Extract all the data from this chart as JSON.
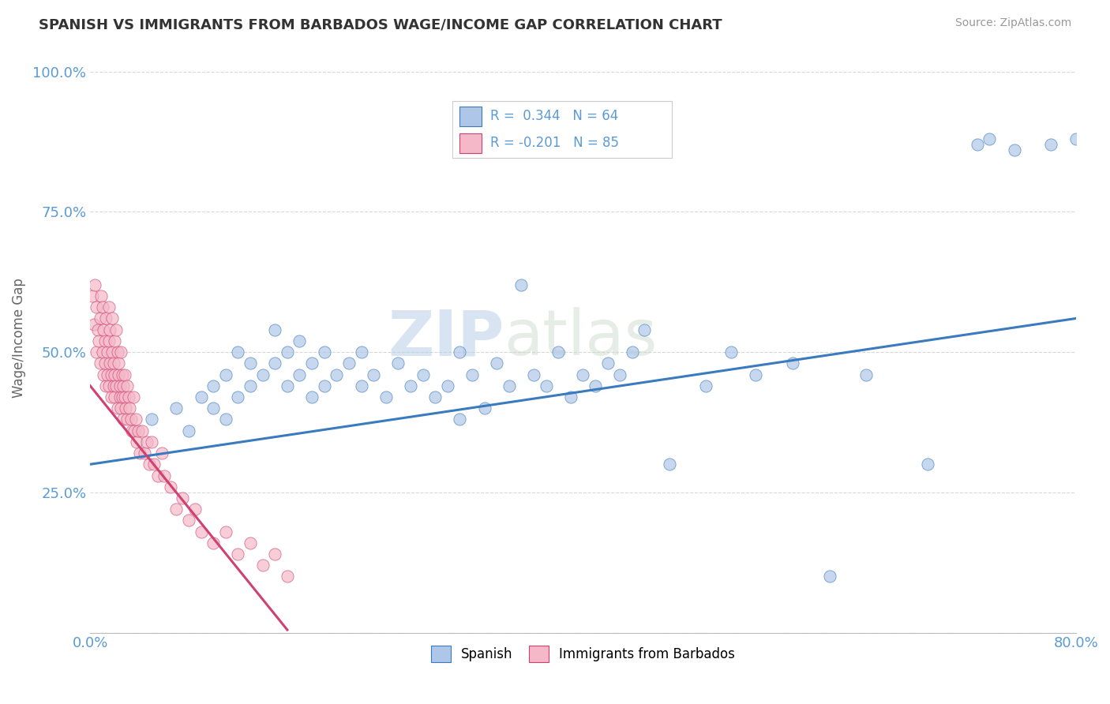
{
  "title": "SPANISH VS IMMIGRANTS FROM BARBADOS WAGE/INCOME GAP CORRELATION CHART",
  "source": "Source: ZipAtlas.com",
  "ylabel": "Wage/Income Gap",
  "legend_labels": [
    "Spanish",
    "Immigrants from Barbados"
  ],
  "blue_color": "#aec6e8",
  "pink_color": "#f4b8c8",
  "line_blue": "#3a7abf",
  "line_pink": "#d04070",
  "watermark_zip": "ZIP",
  "watermark_atlas": "atlas",
  "blue_scatter_x": [
    0.05,
    0.07,
    0.08,
    0.09,
    0.1,
    0.1,
    0.11,
    0.11,
    0.12,
    0.12,
    0.13,
    0.13,
    0.14,
    0.15,
    0.15,
    0.16,
    0.16,
    0.17,
    0.17,
    0.18,
    0.18,
    0.19,
    0.19,
    0.2,
    0.21,
    0.22,
    0.22,
    0.23,
    0.24,
    0.25,
    0.26,
    0.27,
    0.28,
    0.29,
    0.3,
    0.3,
    0.31,
    0.32,
    0.33,
    0.34,
    0.35,
    0.36,
    0.37,
    0.38,
    0.39,
    0.4,
    0.41,
    0.42,
    0.43,
    0.44,
    0.45,
    0.47,
    0.5,
    0.52,
    0.54,
    0.57,
    0.6,
    0.63,
    0.68,
    0.72,
    0.73,
    0.75,
    0.78,
    0.8
  ],
  "blue_scatter_y": [
    0.38,
    0.4,
    0.36,
    0.42,
    0.44,
    0.4,
    0.46,
    0.38,
    0.5,
    0.42,
    0.48,
    0.44,
    0.46,
    0.54,
    0.48,
    0.5,
    0.44,
    0.52,
    0.46,
    0.48,
    0.42,
    0.5,
    0.44,
    0.46,
    0.48,
    0.5,
    0.44,
    0.46,
    0.42,
    0.48,
    0.44,
    0.46,
    0.42,
    0.44,
    0.5,
    0.38,
    0.46,
    0.4,
    0.48,
    0.44,
    0.62,
    0.46,
    0.44,
    0.5,
    0.42,
    0.46,
    0.44,
    0.48,
    0.46,
    0.5,
    0.54,
    0.3,
    0.44,
    0.5,
    0.46,
    0.48,
    0.1,
    0.46,
    0.3,
    0.87,
    0.88,
    0.86,
    0.87,
    0.88
  ],
  "pink_scatter_x": [
    0.002,
    0.003,
    0.004,
    0.005,
    0.005,
    0.006,
    0.007,
    0.008,
    0.008,
    0.009,
    0.01,
    0.01,
    0.011,
    0.011,
    0.012,
    0.012,
    0.013,
    0.013,
    0.014,
    0.014,
    0.015,
    0.015,
    0.015,
    0.016,
    0.016,
    0.017,
    0.017,
    0.018,
    0.018,
    0.019,
    0.019,
    0.02,
    0.02,
    0.02,
    0.021,
    0.021,
    0.022,
    0.022,
    0.023,
    0.023,
    0.024,
    0.024,
    0.025,
    0.025,
    0.026,
    0.026,
    0.027,
    0.027,
    0.028,
    0.028,
    0.029,
    0.03,
    0.03,
    0.031,
    0.032,
    0.033,
    0.034,
    0.035,
    0.036,
    0.037,
    0.038,
    0.039,
    0.04,
    0.042,
    0.044,
    0.046,
    0.048,
    0.05,
    0.052,
    0.055,
    0.058,
    0.06,
    0.065,
    0.07,
    0.075,
    0.08,
    0.085,
    0.09,
    0.1,
    0.11,
    0.12,
    0.13,
    0.14,
    0.15,
    0.16
  ],
  "pink_scatter_y": [
    0.6,
    0.55,
    0.62,
    0.5,
    0.58,
    0.54,
    0.52,
    0.56,
    0.48,
    0.6,
    0.5,
    0.58,
    0.46,
    0.54,
    0.52,
    0.48,
    0.56,
    0.44,
    0.5,
    0.46,
    0.58,
    0.44,
    0.52,
    0.48,
    0.54,
    0.46,
    0.42,
    0.5,
    0.56,
    0.44,
    0.48,
    0.52,
    0.42,
    0.46,
    0.54,
    0.44,
    0.5,
    0.4,
    0.46,
    0.48,
    0.42,
    0.44,
    0.5,
    0.4,
    0.46,
    0.42,
    0.44,
    0.38,
    0.42,
    0.46,
    0.4,
    0.44,
    0.38,
    0.42,
    0.4,
    0.38,
    0.36,
    0.42,
    0.36,
    0.38,
    0.34,
    0.36,
    0.32,
    0.36,
    0.32,
    0.34,
    0.3,
    0.34,
    0.3,
    0.28,
    0.32,
    0.28,
    0.26,
    0.22,
    0.24,
    0.2,
    0.22,
    0.18,
    0.16,
    0.18,
    0.14,
    0.16,
    0.12,
    0.14,
    0.1
  ],
  "xlim": [
    0.0,
    0.8
  ],
  "ylim": [
    0.0,
    1.05
  ],
  "blue_line_x": [
    0.0,
    0.8
  ],
  "blue_line_y_start": 0.3,
  "blue_line_y_end": 0.56,
  "pink_line_x": [
    0.0,
    0.16
  ],
  "pink_line_y_start": 0.44,
  "pink_line_y_end": 0.005,
  "background_color": "#ffffff",
  "grid_color": "#d8d8d8",
  "ytick_vals": [
    0.0,
    0.25,
    0.5,
    0.75,
    1.0
  ],
  "ytick_labels": [
    "",
    "25.0%",
    "50.0%",
    "75.0%",
    "100.0%"
  ],
  "xtick_vals": [
    0.0,
    0.8
  ],
  "xtick_labels": [
    "0.0%",
    "80.0%"
  ],
  "tick_color": "#5b9bd5"
}
